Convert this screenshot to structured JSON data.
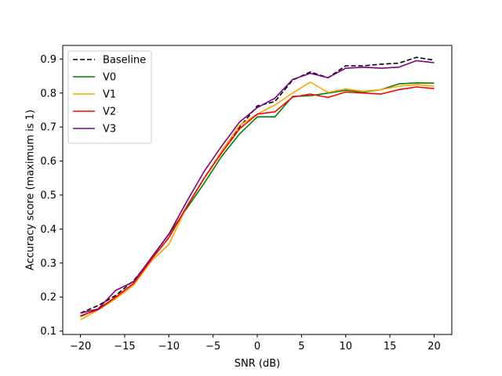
{
  "chart_data": {
    "type": "line",
    "title": "",
    "xlabel": "SNR (dB)",
    "ylabel": "Accuracy score (maximum is 1)",
    "xlim": [
      -22,
      22
    ],
    "ylim": [
      0.09,
      0.94
    ],
    "xticks": [
      -20,
      -15,
      -10,
      -5,
      0,
      5,
      10,
      15,
      20
    ],
    "yticks": [
      0.1,
      0.2,
      0.3,
      0.4,
      0.5,
      0.6,
      0.7,
      0.8,
      0.9
    ],
    "grid": false,
    "legend_position": "upper-left",
    "x": [
      -20,
      -18,
      -16,
      -14,
      -12,
      -10,
      -8,
      -6,
      -4,
      -2,
      0,
      2,
      4,
      6,
      8,
      10,
      12,
      14,
      16,
      18,
      20
    ],
    "series": [
      {
        "name": "Baseline",
        "color": "#000000",
        "dashed": true,
        "values": [
          0.153,
          0.175,
          0.205,
          0.248,
          0.31,
          0.375,
          0.465,
          0.55,
          0.63,
          0.7,
          0.762,
          0.775,
          0.838,
          0.862,
          0.845,
          0.88,
          0.88,
          0.885,
          0.888,
          0.905,
          0.897
        ]
      },
      {
        "name": "V0",
        "color": "#008000",
        "dashed": false,
        "values": [
          0.143,
          0.165,
          0.2,
          0.24,
          0.315,
          0.385,
          0.46,
          0.535,
          0.615,
          0.68,
          0.73,
          0.73,
          0.79,
          0.792,
          0.8,
          0.808,
          0.803,
          0.81,
          0.827,
          0.83,
          0.829
        ]
      },
      {
        "name": "V1",
        "color": "#FFA500",
        "dashed": false,
        "values": [
          0.133,
          0.162,
          0.195,
          0.235,
          0.305,
          0.355,
          0.465,
          0.55,
          0.63,
          0.705,
          0.738,
          0.765,
          0.8,
          0.832,
          0.802,
          0.812,
          0.805,
          0.81,
          0.82,
          0.825,
          0.82
        ]
      },
      {
        "name": "V2",
        "color": "#FF0000",
        "dashed": false,
        "values": [
          0.145,
          0.163,
          0.2,
          0.24,
          0.31,
          0.375,
          0.465,
          0.55,
          0.625,
          0.695,
          0.738,
          0.745,
          0.788,
          0.797,
          0.787,
          0.803,
          0.8,
          0.797,
          0.81,
          0.818,
          0.813
        ]
      },
      {
        "name": "V3",
        "color": "#800080",
        "dashed": false,
        "values": [
          0.153,
          0.165,
          0.22,
          0.245,
          0.315,
          0.385,
          0.48,
          0.57,
          0.645,
          0.715,
          0.757,
          0.785,
          0.84,
          0.858,
          0.845,
          0.873,
          0.876,
          0.873,
          0.876,
          0.895,
          0.889
        ]
      }
    ]
  }
}
